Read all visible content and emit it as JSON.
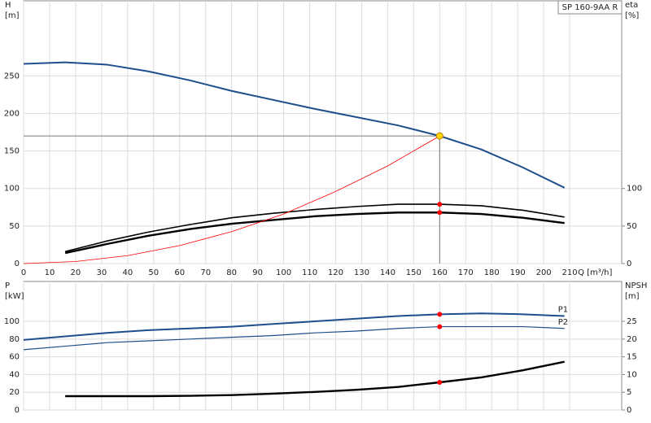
{
  "chart_data": [
    {
      "type": "line",
      "title": "SP 160-9AA R",
      "ylabel": "H",
      "yunit": "[m]",
      "y2label": "eta",
      "y2unit": "[%]",
      "xlabel": "Q [m³/h]",
      "xlim": [
        0,
        230
      ],
      "xticks": [
        0,
        10,
        20,
        30,
        40,
        50,
        60,
        70,
        80,
        90,
        100,
        110,
        120,
        130,
        140,
        150,
        160,
        170,
        180,
        190,
        200,
        210
      ],
      "ylim": [
        0,
        350
      ],
      "yticks": [
        0,
        50,
        100,
        150,
        200,
        250
      ],
      "y2lim": [
        0,
        350
      ],
      "y2ticks": [
        0,
        50,
        100
      ],
      "grid": true,
      "series": [
        {
          "color": "#1f4e8c",
          "line_width": 2,
          "axis": "y",
          "x": [
            0,
            16,
            32,
            48,
            64,
            80,
            96,
            112,
            128,
            144,
            160,
            176,
            192,
            208
          ],
          "values": [
            266,
            268,
            265,
            256,
            244,
            230,
            218,
            206,
            195,
            184,
            170,
            152,
            128,
            101
          ]
        },
        {
          "color": "#000000",
          "line_width": 1.6,
          "axis": "y2",
          "x": [
            16,
            32,
            48,
            64,
            80,
            96,
            112,
            128,
            144,
            160,
            176,
            192,
            208
          ],
          "values": [
            16,
            30,
            42,
            52,
            61,
            67,
            72,
            76,
            79,
            79,
            77,
            71,
            62
          ]
        },
        {
          "color": "#000000",
          "line_width": 2.4,
          "axis": "y2",
          "x": [
            16,
            32,
            48,
            64,
            80,
            96,
            112,
            128,
            144,
            160,
            176,
            192,
            208
          ],
          "values": [
            14,
            26,
            37,
            46,
            53,
            58,
            63,
            66,
            68,
            68,
            66,
            61,
            54
          ]
        },
        {
          "color": "#ff0000",
          "line_width": 0.8,
          "axis": "y",
          "x": [
            0,
            20,
            40,
            60,
            80,
            100,
            120,
            140,
            160
          ],
          "values": [
            0,
            2.7,
            10.6,
            24,
            42.5,
            66,
            96,
            130,
            170
          ]
        }
      ],
      "markers": [
        {
          "x": 160,
          "y": 170,
          "axis": "y",
          "color": "#ffd700",
          "guide": true
        },
        {
          "x": 160,
          "y": 79,
          "axis": "y2",
          "color": "#ff0000"
        },
        {
          "x": 160,
          "y": 68,
          "axis": "y2",
          "color": "#ff0000"
        }
      ]
    },
    {
      "type": "line",
      "ylabel": "P",
      "yunit": "[kW]",
      "y2label": "NPSH",
      "y2unit": "[m]",
      "xlim": [
        0,
        230
      ],
      "xticks": [
        0,
        10,
        20,
        30,
        40,
        50,
        60,
        70,
        80,
        90,
        100,
        110,
        120,
        130,
        140,
        150,
        160,
        170,
        180,
        190,
        200,
        210
      ],
      "ylim": [
        0,
        145
      ],
      "yticks": [
        0,
        20,
        40,
        60,
        80,
        100
      ],
      "y2lim": [
        0,
        36.25
      ],
      "y2ticks": [
        0,
        5,
        10,
        15,
        20,
        25
      ],
      "grid": true,
      "series": [
        {
          "name": "P1",
          "color": "#1f4e8c",
          "line_width": 2,
          "axis": "y",
          "x": [
            0,
            16,
            32,
            48,
            64,
            80,
            96,
            112,
            128,
            144,
            160,
            176,
            192,
            208
          ],
          "values": [
            79,
            83,
            87,
            90,
            92,
            94,
            97,
            100,
            103,
            106,
            108,
            109,
            108,
            106
          ]
        },
        {
          "name": "P2",
          "color": "#1f4e8c",
          "line_width": 1.2,
          "axis": "y",
          "x": [
            0,
            16,
            32,
            48,
            64,
            80,
            96,
            112,
            128,
            144,
            160,
            176,
            192,
            208
          ],
          "values": [
            68,
            72,
            76,
            78,
            80,
            82,
            84,
            87,
            89,
            92,
            94,
            94,
            94,
            92
          ]
        },
        {
          "color": "#000000",
          "line_width": 2.4,
          "axis": "y2",
          "x": [
            16,
            32,
            48,
            64,
            80,
            96,
            112,
            128,
            144,
            160,
            176,
            192,
            208
          ],
          "values": [
            3.9,
            3.9,
            3.9,
            4,
            4.2,
            4.6,
            5.1,
            5.7,
            6.5,
            7.8,
            9.2,
            11.2,
            13.6
          ]
        }
      ],
      "markers": [
        {
          "x": 160,
          "y": 108,
          "axis": "y",
          "color": "#ff0000"
        },
        {
          "x": 160,
          "y": 94,
          "axis": "y",
          "color": "#ff0000"
        },
        {
          "x": 160,
          "y": 7.8,
          "axis": "y2",
          "color": "#ff0000"
        }
      ]
    }
  ]
}
